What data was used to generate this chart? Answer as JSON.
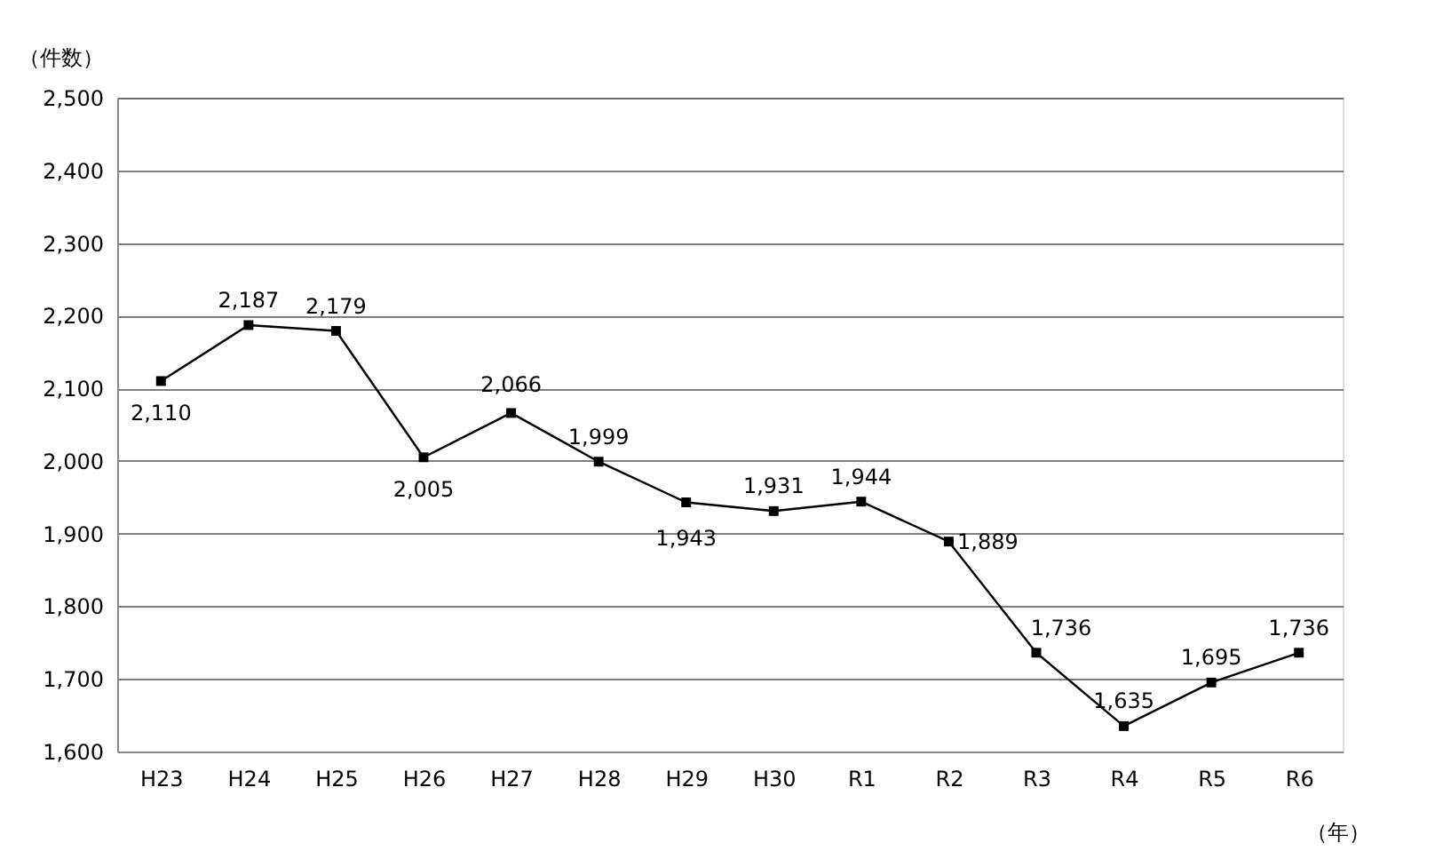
{
  "chart_data": {
    "type": "line",
    "xlabel": "（年）",
    "ylabel": "（件数）",
    "categories": [
      "H23",
      "H24",
      "H25",
      "H26",
      "H27",
      "H28",
      "H29",
      "H30",
      "R1",
      "R2",
      "R3",
      "R4",
      "R5",
      "R6"
    ],
    "series": [
      {
        "color": "#000000",
        "values": [
          2110,
          2187,
          2179,
          2005,
          2066,
          1999,
          1943,
          1931,
          1944,
          1889,
          1736,
          1635,
          1695,
          1736
        ]
      }
    ],
    "ylim": [
      1600,
      2500
    ],
    "yticks": [
      {
        "value": 1600,
        "label": "1,600"
      },
      {
        "value": 1700,
        "label": "1,700"
      },
      {
        "value": 1800,
        "label": "1,800"
      },
      {
        "value": 1900,
        "label": "1,900"
      },
      {
        "value": 2000,
        "label": "2,000"
      },
      {
        "value": 2100,
        "label": "2,100"
      },
      {
        "value": 2200,
        "label": "2,200"
      },
      {
        "value": 2300,
        "label": "2,300"
      },
      {
        "value": 2400,
        "label": "2,400"
      },
      {
        "value": 2500,
        "label": "2,500"
      }
    ],
    "grid": "y",
    "marker": "square",
    "line_style": "solid",
    "value_labels": [
      "2,110",
      "2,187",
      "2,179",
      "2,005",
      "2,066",
      "1,999",
      "1,943",
      "1,931",
      "1,944",
      "1,889",
      "1,736",
      "1,635",
      "1,695",
      "1,736"
    ]
  }
}
